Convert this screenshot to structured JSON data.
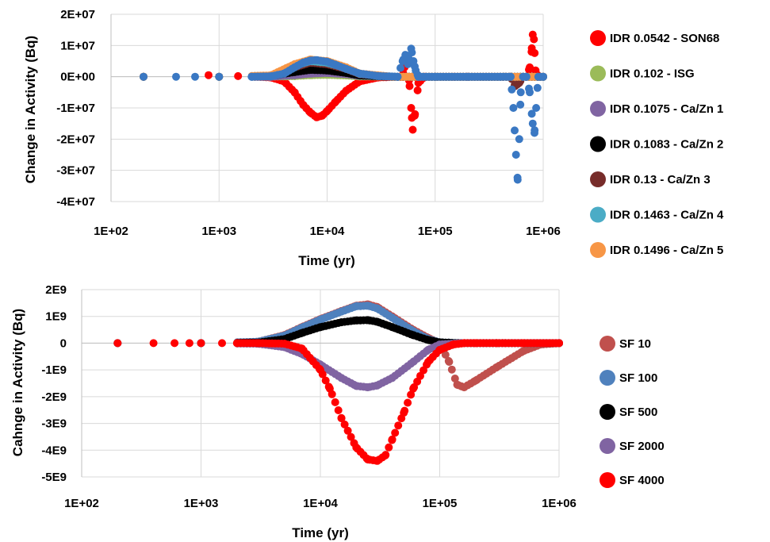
{
  "chart_data": [
    {
      "type": "scatter",
      "title": "",
      "xlabel": "Time (yr)",
      "ylabel": "Change in Activity (Bq)",
      "xscale": "log",
      "xlim": [
        100,
        1000000
      ],
      "ylim": [
        -40000000,
        20000000
      ],
      "x_ticks": [
        "1E+02",
        "1E+03",
        "1E+04",
        "1E+05",
        "1E+06"
      ],
      "y_ticks": [
        "2E+07",
        "1E+07",
        "0E+00",
        "-1E+07",
        "-2E+07",
        "-3E+07",
        "-4E+07"
      ],
      "grid": true,
      "legend_position": "right",
      "series": [
        {
          "name": "IDR 0.0542 - SON68",
          "color": "#ff0000",
          "x": [
            200,
            800,
            1500,
            3000,
            4000,
            5000,
            6000,
            7000,
            8000,
            9000,
            10000,
            12000,
            15000,
            20000,
            30000,
            50000,
            52000,
            55000,
            58000,
            60000,
            62000,
            65000,
            70000,
            80000,
            100000,
            150000,
            200000,
            500000,
            700000,
            750000,
            780000,
            800000,
            820000,
            850000,
            900000,
            1000000
          ],
          "y": [
            0,
            500000,
            200000,
            -200000,
            -1500000,
            -5000000,
            -9000000,
            -11500000,
            -13000000,
            -12500000,
            -11000000,
            -8000000,
            -4500000,
            -1500000,
            -200000,
            0,
            3000000,
            5000000,
            -3000000,
            -10000000,
            -17000000,
            -12000000,
            -2000000,
            0,
            0,
            0,
            0,
            0,
            0,
            3000000,
            8000000,
            13500000,
            12000000,
            2000000,
            0,
            0
          ]
        },
        {
          "name": "IDR 0.102 - ISG",
          "color": "#9bbb59",
          "x": [
            200,
            1000,
            3000,
            5000,
            7000,
            10000,
            15000,
            20000,
            40000,
            100000,
            1000000
          ],
          "y": [
            0,
            0,
            0,
            200000,
            500000,
            600000,
            400000,
            100000,
            0,
            0,
            0
          ]
        },
        {
          "name": "IDR 0.1075 - Ca/Zn 1",
          "color": "#8064a2",
          "x": [
            200,
            1000,
            3000,
            5000,
            7000,
            10000,
            15000,
            20000,
            40000,
            100000,
            1000000
          ],
          "y": [
            0,
            0,
            0,
            500000,
            1000000,
            1200000,
            800000,
            300000,
            0,
            0,
            0
          ]
        },
        {
          "name": "IDR 0.1083  - Ca/Zn 2",
          "color": "#000000",
          "x": [
            200,
            1000,
            3000,
            5000,
            7000,
            10000,
            15000,
            20000,
            40000,
            100000,
            1000000
          ],
          "y": [
            0,
            0,
            200000,
            1500000,
            2200000,
            2000000,
            1200000,
            400000,
            0,
            0,
            0
          ]
        },
        {
          "name": "IDR 0.13  - Ca/Zn 3",
          "color": "#772c2a",
          "x": [
            200,
            1000,
            3000,
            5000,
            7000,
            10000,
            15000,
            20000,
            40000,
            100000,
            500000,
            550000,
            600000,
            650000,
            1000000
          ],
          "y": [
            0,
            0,
            300000,
            3000000,
            4500000,
            4000000,
            2500000,
            800000,
            0,
            0,
            0,
            -3000000,
            -2000000,
            0,
            0
          ]
        },
        {
          "name": "IDR 0.1463  - Ca/Zn 4",
          "color": "#4bacc6",
          "x": [
            200,
            1000,
            3000,
            5000,
            7000,
            10000,
            15000,
            20000,
            40000,
            100000,
            1000000
          ],
          "y": [
            0,
            0,
            300000,
            3500000,
            5000000,
            4500000,
            2800000,
            900000,
            0,
            0,
            0
          ]
        },
        {
          "name": "IDR 0.1496  - Ca/Zn 5",
          "color": "#f79646",
          "x": [
            200,
            1000,
            3000,
            5000,
            7000,
            10000,
            15000,
            20000,
            40000,
            100000,
            1000000
          ],
          "y": [
            0,
            0,
            400000,
            4000000,
            5500000,
            5000000,
            3000000,
            1000000,
            0,
            0,
            0
          ]
        },
        {
          "name": "",
          "color": "#3a78c3",
          "x": [
            200,
            400,
            600,
            1000,
            2000,
            3000,
            4000,
            5000,
            6000,
            7000,
            8000,
            10000,
            12000,
            15000,
            20000,
            30000,
            45000,
            50000,
            53000,
            56000,
            60000,
            63000,
            66000,
            70000,
            100000,
            200000,
            400000,
            500000,
            530000,
            560000,
            580000,
            600000,
            620000,
            650000,
            700000,
            750000,
            800000,
            830000,
            860000,
            900000,
            1000000
          ],
          "y": [
            0,
            0,
            0,
            0,
            0,
            100000,
            1000000,
            3000000,
            4500000,
            5200000,
            5300000,
            4800000,
            3800000,
            2500000,
            1000000,
            200000,
            0,
            5000000,
            7000000,
            4000000,
            9000000,
            5000000,
            2000000,
            0,
            0,
            0,
            0,
            0,
            -10000000,
            -25000000,
            -33000000,
            -20000000,
            -5000000,
            0,
            0,
            -5000000,
            -15000000,
            -18000000,
            -10000000,
            0,
            0
          ]
        }
      ]
    },
    {
      "type": "scatter",
      "title": "",
      "xlabel": "Time (yr)",
      "ylabel": "Cahnge in Activity (Bq)",
      "xscale": "log",
      "xlim": [
        100,
        1000000
      ],
      "ylim": [
        -5000000000,
        2000000000
      ],
      "x_ticks": [
        "1E+02",
        "1E+03",
        "1E+04",
        "1E+05",
        "1E+06"
      ],
      "y_ticks": [
        "2E9",
        "1E9",
        "0",
        "-1E9",
        "-2E9",
        "-3E9",
        "-4E9",
        "-5E9"
      ],
      "grid": true,
      "legend_position": "right",
      "series": [
        {
          "name": "SF 10",
          "color": "#c0504d",
          "x": [
            200,
            1000,
            3000,
            5000,
            7000,
            10000,
            15000,
            20000,
            25000,
            30000,
            40000,
            60000,
            80000,
            100000,
            120000,
            140000,
            160000,
            200000,
            300000,
            500000,
            700000,
            1000000
          ],
          "y": [
            0,
            0,
            50000000,
            300000000,
            600000000,
            900000000,
            1200000000,
            1400000000,
            1450000000,
            1350000000,
            1000000000,
            500000000,
            200000000,
            0,
            -700000000,
            -1550000000,
            -1650000000,
            -1400000000,
            -900000000,
            -300000000,
            -50000000,
            0
          ]
        },
        {
          "name": "SF 100",
          "color": "#4f81bd",
          "x": [
            200,
            1000,
            3000,
            5000,
            7000,
            10000,
            15000,
            20000,
            25000,
            30000,
            40000,
            60000,
            80000,
            100000,
            150000,
            300000,
            1000000
          ],
          "y": [
            0,
            0,
            50000000,
            280000000,
            580000000,
            880000000,
            1180000000,
            1380000000,
            1400000000,
            1300000000,
            950000000,
            450000000,
            150000000,
            30000000,
            0,
            0,
            0
          ]
        },
        {
          "name": "SF 500",
          "color": "#000000",
          "x": [
            200,
            1000,
            3000,
            5000,
            7000,
            10000,
            15000,
            20000,
            25000,
            30000,
            40000,
            60000,
            80000,
            100000,
            150000,
            300000,
            1000000
          ],
          "y": [
            0,
            0,
            20000000,
            150000000,
            380000000,
            600000000,
            780000000,
            850000000,
            860000000,
            800000000,
            600000000,
            300000000,
            120000000,
            30000000,
            0,
            0,
            0
          ]
        },
        {
          "name": "SF 2000",
          "color": "#8064a2",
          "x": [
            200,
            1000,
            3000,
            5000,
            7000,
            10000,
            15000,
            20000,
            25000,
            30000,
            40000,
            60000,
            80000,
            100000,
            150000,
            300000,
            1000000
          ],
          "y": [
            0,
            0,
            -20000000,
            -150000000,
            -400000000,
            -800000000,
            -1300000000,
            -1600000000,
            -1650000000,
            -1580000000,
            -1300000000,
            -700000000,
            -250000000,
            -50000000,
            0,
            0,
            0
          ]
        },
        {
          "name": "SF 4000",
          "color": "#ff0000",
          "x": [
            200,
            400,
            600,
            800,
            1000,
            1500,
            2000,
            3000,
            5000,
            7000,
            10000,
            12000,
            15000,
            20000,
            25000,
            30000,
            35000,
            40000,
            50000,
            60000,
            80000,
            100000,
            130000,
            160000,
            200000,
            300000,
            500000,
            1000000
          ],
          "y": [
            0,
            0,
            0,
            0,
            0,
            0,
            0,
            0,
            -20000000,
            -200000000,
            -1000000000,
            -1700000000,
            -2800000000,
            -3900000000,
            -4350000000,
            -4400000000,
            -4200000000,
            -3600000000,
            -2600000000,
            -1700000000,
            -700000000,
            -250000000,
            -50000000,
            0,
            0,
            0,
            0,
            0
          ]
        }
      ]
    }
  ]
}
